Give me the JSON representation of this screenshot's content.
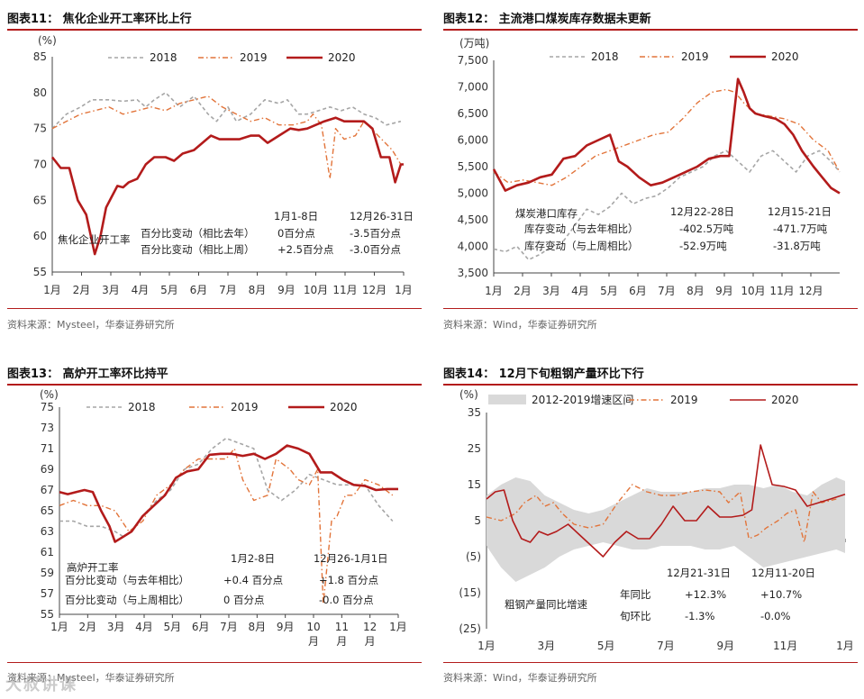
{
  "charts": [
    {
      "title": "图表11：  焦化企业开工率环比上行",
      "source": "资料来源：Mysteel，华泰证券研究所",
      "unit": "(%)",
      "yticks": [
        "85",
        "80",
        "75",
        "70",
        "65",
        "60",
        "55"
      ],
      "xticks": [
        "1月",
        "2月",
        "3月",
        "4月",
        "5月",
        "6月",
        "7月",
        "8月",
        "9月",
        "10月",
        "11月",
        "12月",
        "1月"
      ],
      "legend": [
        "2018",
        "2019",
        "2020"
      ],
      "label": "焦化企业开工率",
      "ann_head": [
        "1月1-8日",
        "12月26-31日"
      ],
      "ann_rows": [
        {
          "name": "百分比变动（相比去年）",
          "a": "0百分点",
          "b": "-3.5百分点"
        },
        {
          "name": "百分比变动（相比上周）",
          "a": "+2.5百分点",
          "b": "-3.0百分点"
        }
      ]
    },
    {
      "title": "图表12：  主流港口煤炭库存数据未更新",
      "source": "资料来源：Wind，华泰证券研究所",
      "unit": "(万吨)",
      "yticks": [
        "7,500",
        "7,000",
        "6,500",
        "6,000",
        "5,500",
        "5,000",
        "4,500",
        "4,000",
        "3,500"
      ],
      "xticks": [
        "1月",
        "2月",
        "3月",
        "4月",
        "5月",
        "6月",
        "7月",
        "8月",
        "9月",
        "10月",
        "11月",
        "12月"
      ],
      "legend": [
        "2018",
        "2019",
        "2020"
      ],
      "label": "煤炭港口库存",
      "ann_head": [
        "12月22-28日",
        "12月15-21日"
      ],
      "ann_rows": [
        {
          "name": "库存变动（与去年相比）",
          "a": "-402.5万吨",
          "b": "-471.7万吨"
        },
        {
          "name": "库存变动（与上周相比）",
          "a": "-52.9万吨",
          "b": "-31.8万吨"
        }
      ]
    },
    {
      "title": "图表13：  高炉开工率环比持平",
      "source": "资料来源：Mysteel，华泰证券研究所",
      "unit": "(%)",
      "yticks": [
        "75",
        "73",
        "71",
        "69",
        "67",
        "65",
        "63",
        "61",
        "59",
        "57",
        "55"
      ],
      "xticks": [
        "1月",
        "2月",
        "3月",
        "4月",
        "5月",
        "6月",
        "7月",
        "8月",
        "9月",
        "10\n月",
        "11\n月",
        "12\n月",
        "1月"
      ],
      "legend": [
        "2018",
        "2019",
        "2020"
      ],
      "label": "高炉开工率",
      "ann_head": [
        "1月2-8日",
        "12月26-1月1日"
      ],
      "ann_rows": [
        {
          "name": "百分比变动（与去年相比）",
          "a": "+0.4 百分点",
          "b": "+1.8 百分点"
        },
        {
          "name": "百分比变动（与上周相比）",
          "a": "0 百分点",
          "b": "-0.0 百分点"
        }
      ]
    },
    {
      "title": "图表14：  12月下旬粗钢产量环比下行",
      "source": "资料来源：Wind，华泰证券研究所",
      "unit": "(%)",
      "yticks": [
        "35",
        "25",
        "15",
        "5",
        "(5)",
        "(15)",
        "(25)"
      ],
      "xticks": [
        "1月",
        "3月",
        "5月",
        "7月",
        "9月",
        "11月",
        "1月"
      ],
      "legend": [
        "2012-2019增速区间",
        "2019",
        "2020"
      ],
      "label": "粗钢产量同比增速",
      "ann_head": [
        "12月21-31日",
        "12月11-20日"
      ],
      "ann_rows": [
        {
          "name": "年同比",
          "a": "+12.3%",
          "b": "+10.7%"
        },
        {
          "name": "旬环比",
          "a": "-1.3%",
          "b": "-0.0%"
        }
      ]
    }
  ],
  "watermark": "大叔讲课",
  "colors": {
    "c2020": "#b31b1b",
    "c2019": "#e2743a",
    "c2018": "#a6a6a6",
    "band": "#d9d9d9",
    "rule": "#b31b1b"
  },
  "chart_data": [
    {
      "type": "line",
      "title": "焦化企业开工率环比上行",
      "ylabel": "(%)",
      "ylim": [
        55,
        85
      ],
      "x_range": [
        0,
        12.4
      ],
      "series": [
        {
          "name": "2018",
          "x": [
            0,
            0.5,
            1,
            1.4,
            2,
            2.5,
            3,
            3.3,
            3.6,
            4,
            4.5,
            5,
            5.5,
            5.8,
            6.2,
            6.5,
            7,
            7.5,
            8,
            8.3,
            8.7,
            9,
            9.4,
            9.8,
            10.2,
            10.6,
            11,
            11.4,
            11.8,
            12.3
          ],
          "y": [
            75,
            77,
            78,
            79,
            79,
            78.8,
            79,
            78,
            79,
            80,
            78,
            79.5,
            77,
            76,
            78,
            76,
            77,
            79,
            78.5,
            79,
            77,
            77,
            77.5,
            78,
            77.5,
            78,
            77,
            76.5,
            75.5,
            76
          ]
        },
        {
          "name": "2019",
          "x": [
            0,
            0.5,
            1,
            1.5,
            2,
            2.5,
            3,
            3.5,
            4,
            4.5,
            5,
            5.5,
            6,
            6.5,
            7,
            7.5,
            8,
            8.5,
            9,
            9.2,
            9.5,
            9.8,
            10,
            10.3,
            10.7,
            11,
            11.5,
            12,
            12.3
          ],
          "y": [
            75,
            76,
            77,
            77.5,
            78,
            77,
            77.5,
            78,
            77.5,
            78.5,
            79,
            79.5,
            78,
            77,
            76,
            76.5,
            75.5,
            75.5,
            76,
            77,
            75.5,
            68,
            75,
            73.5,
            74,
            76,
            74,
            72,
            70
          ]
        },
        {
          "name": "2020",
          "x": [
            0,
            0.3,
            0.6,
            0.9,
            1.2,
            1.5,
            1.7,
            1.9,
            2.1,
            2.3,
            2.5,
            2.7,
            3,
            3.3,
            3.6,
            4,
            4.3,
            4.6,
            5,
            5.3,
            5.6,
            5.9,
            6.2,
            6.6,
            7,
            7.3,
            7.6,
            8,
            8.4,
            8.7,
            9,
            9.3,
            9.6,
            10,
            10.3,
            10.6,
            11,
            11.3,
            11.6,
            11.9,
            12.1,
            12.3,
            12.4
          ],
          "y": [
            71,
            69.5,
            69.5,
            65,
            63,
            57.5,
            60,
            64,
            65.5,
            67,
            66.8,
            67.5,
            68,
            70,
            71,
            71,
            70.5,
            71.5,
            72,
            73,
            74,
            73.5,
            73.5,
            73.5,
            74,
            74,
            73,
            74,
            75,
            74.8,
            75,
            75.5,
            76,
            76.5,
            76,
            76,
            76,
            75,
            71,
            71,
            67.5,
            70,
            70
          ]
        }
      ]
    },
    {
      "type": "line",
      "title": "主流港口煤炭库存数据未更新",
      "ylabel": "(万吨)",
      "ylim": [
        3500,
        7500
      ],
      "x_range": [
        0,
        11.9
      ],
      "series": [
        {
          "name": "2018",
          "x": [
            0,
            0.4,
            0.8,
            1.2,
            1.6,
            2,
            2.4,
            2.8,
            3.2,
            3.6,
            4,
            4.4,
            4.8,
            5.2,
            5.6,
            6,
            6.4,
            6.8,
            7.2,
            7.6,
            8,
            8.4,
            8.8,
            9.2,
            9.6,
            10,
            10.4,
            10.8,
            11.2,
            11.6,
            11.9
          ],
          "y": [
            3950,
            3900,
            4000,
            3750,
            3850,
            4000,
            4100,
            4400,
            4700,
            4600,
            4750,
            5000,
            4800,
            4900,
            4950,
            5100,
            5300,
            5400,
            5500,
            5700,
            5800,
            5600,
            5400,
            5700,
            5800,
            5600,
            5400,
            5700,
            5800,
            5600,
            5400
          ]
        },
        {
          "name": "2019",
          "x": [
            0,
            0.5,
            1,
            1.5,
            2,
            2.5,
            3,
            3.5,
            4,
            4.5,
            5,
            5.5,
            6,
            6.5,
            7,
            7.5,
            8,
            8.3,
            8.6,
            9,
            9.5,
            10,
            10.5,
            11,
            11.5,
            11.9
          ],
          "y": [
            5400,
            5200,
            5250,
            5200,
            5150,
            5300,
            5500,
            5700,
            5800,
            5900,
            6000,
            6100,
            6150,
            6400,
            6700,
            6900,
            6950,
            6900,
            6700,
            6500,
            6450,
            6400,
            6300,
            6000,
            5800,
            5400
          ]
        },
        {
          "name": "2020",
          "x": [
            0,
            0.4,
            0.8,
            1.2,
            1.6,
            2,
            2.4,
            2.8,
            3.2,
            3.6,
            4,
            4.3,
            4.6,
            5,
            5.4,
            5.8,
            6.2,
            6.6,
            7,
            7.4,
            7.8,
            8.1,
            8.4,
            8.6,
            8.8,
            9,
            9.3,
            9.7,
            10,
            10.3,
            10.6,
            11,
            11.3,
            11.6,
            11.9
          ],
          "y": [
            5450,
            5050,
            5150,
            5200,
            5300,
            5350,
            5650,
            5700,
            5900,
            6000,
            6100,
            5600,
            5500,
            5300,
            5150,
            5200,
            5300,
            5400,
            5500,
            5650,
            5700,
            5700,
            7150,
            6900,
            6600,
            6500,
            6450,
            6400,
            6300,
            6100,
            5800,
            5500,
            5300,
            5100,
            5000
          ]
        }
      ]
    },
    {
      "type": "line",
      "title": "高炉开工率环比持平",
      "ylabel": "(%)",
      "ylim": [
        55,
        75
      ],
      "x_range": [
        0,
        12.2
      ],
      "series": [
        {
          "name": "2018",
          "x": [
            0,
            0.5,
            1,
            1.5,
            2,
            2.3,
            2.6,
            3,
            3.5,
            4,
            4.5,
            5,
            5.5,
            6,
            6.5,
            7,
            7.5,
            8,
            8.5,
            9,
            9.5,
            10,
            10.5,
            11,
            11.5,
            12
          ],
          "y": [
            64,
            64,
            63.5,
            63.5,
            63,
            62.5,
            63,
            64.5,
            66,
            67,
            69,
            69.5,
            71,
            72,
            71.5,
            71,
            67,
            66,
            67,
            68.5,
            68,
            67.5,
            67.5,
            67.5,
            65.5,
            64
          ]
        },
        {
          "name": "2019",
          "x": [
            0,
            0.5,
            1,
            1.5,
            2,
            2.5,
            3,
            3.5,
            4,
            4.5,
            5,
            5.5,
            6,
            6.3,
            6.6,
            7,
            7.5,
            7.8,
            8.3,
            8.6,
            9,
            9.3,
            9.5,
            9.8,
            10,
            10.3,
            10.6,
            11,
            11.5,
            12
          ],
          "y": [
            65.5,
            66,
            65.5,
            65.5,
            65,
            63,
            64,
            66.5,
            67.5,
            69,
            70,
            70,
            70,
            71,
            68,
            66,
            66.5,
            70,
            69,
            68,
            67.5,
            69,
            56,
            64,
            64.5,
            66.5,
            66.5,
            68,
            67.5,
            66.5
          ]
        },
        {
          "name": "2020",
          "x": [
            0,
            0.3,
            0.6,
            0.9,
            1.2,
            1.5,
            1.8,
            2,
            2.3,
            2.6,
            3,
            3.4,
            3.8,
            4.2,
            4.6,
            5,
            5.4,
            5.8,
            6.2,
            6.6,
            7,
            7.4,
            7.8,
            8.2,
            8.6,
            9,
            9.4,
            9.8,
            10.2,
            10.6,
            11,
            11.4,
            11.8,
            12.2
          ],
          "y": [
            66.8,
            66.6,
            66.8,
            67,
            66.8,
            65,
            63.5,
            62,
            62.5,
            63,
            64.5,
            65.5,
            66.5,
            68.2,
            68.8,
            69,
            70.4,
            70.5,
            70.5,
            70.3,
            70.5,
            70,
            70.5,
            71.3,
            71,
            70.5,
            68.7,
            68.7,
            68,
            67.5,
            67.4,
            67,
            67.1,
            67.1
          ]
        }
      ]
    },
    {
      "type": "area",
      "title": "12月下旬粗钢产量环比下行",
      "ylabel": "(%)",
      "ylim": [
        -25,
        35
      ],
      "x_range": [
        0,
        12.3
      ],
      "series": [
        {
          "name": "2012-2019增速区间",
          "x": [
            0,
            0.5,
            1,
            1.5,
            2,
            2.5,
            3,
            3.5,
            4,
            4.5,
            5,
            5.5,
            6,
            6.5,
            7,
            7.5,
            8,
            8.5,
            9,
            9.5,
            10,
            10.5,
            11,
            11.5,
            12,
            12.3
          ],
          "upper": [
            12,
            15,
            17,
            16,
            12,
            10,
            8,
            7,
            8,
            10,
            12,
            14,
            13,
            13,
            13,
            14,
            14,
            15,
            15,
            14,
            15,
            13,
            12,
            15,
            17,
            16
          ],
          "lower": [
            -2,
            -8,
            -12,
            -10,
            -8,
            -5,
            -3,
            -2,
            -1,
            -2,
            -3,
            -3,
            -2,
            -2,
            -2,
            -3,
            -3,
            -2,
            -5,
            -8,
            -7,
            -6,
            -5,
            -4,
            -3,
            -4
          ]
        },
        {
          "name": "2019",
          "x": [
            0,
            0.5,
            1,
            1.3,
            1.7,
            2,
            2.3,
            2.6,
            3,
            3.5,
            4,
            4.5,
            5,
            5.5,
            6,
            6.5,
            7,
            7.5,
            8,
            8.3,
            8.7,
            9,
            9.3,
            9.6,
            10,
            10.3,
            10.6,
            10.9,
            11.2,
            11.5,
            12
          ],
          "y": [
            6,
            5,
            7,
            10,
            12,
            9,
            10,
            7,
            4,
            3,
            4,
            10,
            15,
            13,
            12,
            12,
            13,
            13.5,
            13,
            10,
            13,
            0,
            1,
            3,
            5,
            7,
            8,
            -1,
            13,
            10,
            11
          ]
        },
        {
          "name": "2020",
          "x": [
            0,
            0.3,
            0.6,
            0.9,
            1.2,
            1.5,
            1.8,
            2.1,
            2.4,
            2.8,
            3.2,
            3.6,
            4,
            4.4,
            4.8,
            5.2,
            5.6,
            6,
            6.4,
            6.8,
            7.2,
            7.6,
            8,
            8.4,
            8.8,
            9.1,
            9.4,
            9.8,
            10.2,
            10.6,
            11,
            11.4,
            11.8,
            12.3
          ],
          "y": [
            11,
            13,
            13.5,
            5,
            0,
            -1,
            2,
            1,
            2,
            4,
            1,
            -2,
            -5,
            -1,
            2,
            0,
            0,
            4,
            9,
            5,
            5,
            9,
            6,
            6,
            6.5,
            8,
            26,
            15,
            14.5,
            13.5,
            9,
            10,
            11,
            12.3
          ]
        }
      ]
    }
  ]
}
